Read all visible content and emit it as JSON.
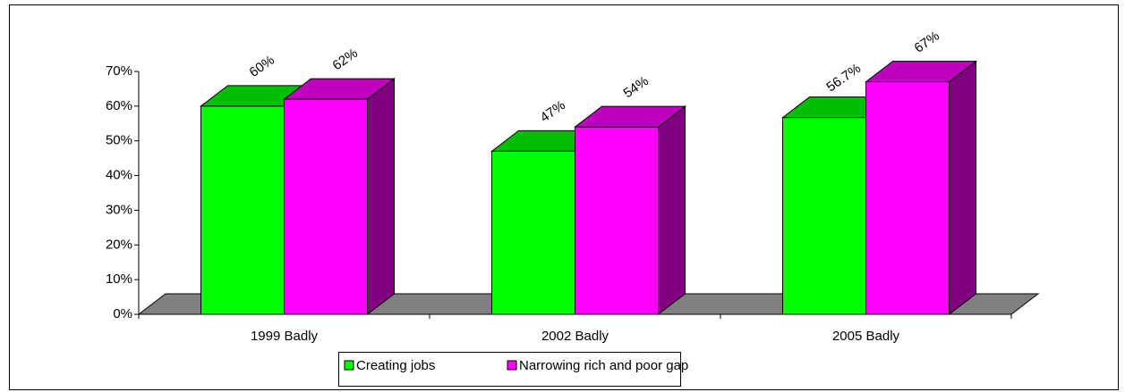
{
  "chart_data": {
    "type": "bar3d",
    "categories": [
      "1999 Badly",
      "2002 Badly",
      "2005 Badly"
    ],
    "series": [
      {
        "name": "Creating jobs",
        "color": "#00ff00",
        "values": [
          60,
          47,
          56.7
        ],
        "value_labels": [
          "60%",
          "47%",
          "56.7%"
        ]
      },
      {
        "name": "Narrowing rich and poor gap",
        "color": "#ff00ff",
        "values": [
          62,
          54,
          67
        ],
        "value_labels": [
          "62%",
          "54%",
          "67%"
        ]
      }
    ],
    "ylim": [
      0,
      70
    ],
    "yticks": [
      {
        "value": 0,
        "label": "0%"
      },
      {
        "value": 10,
        "label": "10%"
      },
      {
        "value": 20,
        "label": "20%"
      },
      {
        "value": 30,
        "label": "30%"
      },
      {
        "value": 40,
        "label": "40%"
      },
      {
        "value": 50,
        "label": "50%"
      },
      {
        "value": 60,
        "label": "60%"
      },
      {
        "value": 70,
        "label": "70%"
      }
    ],
    "legend": "bottom"
  }
}
